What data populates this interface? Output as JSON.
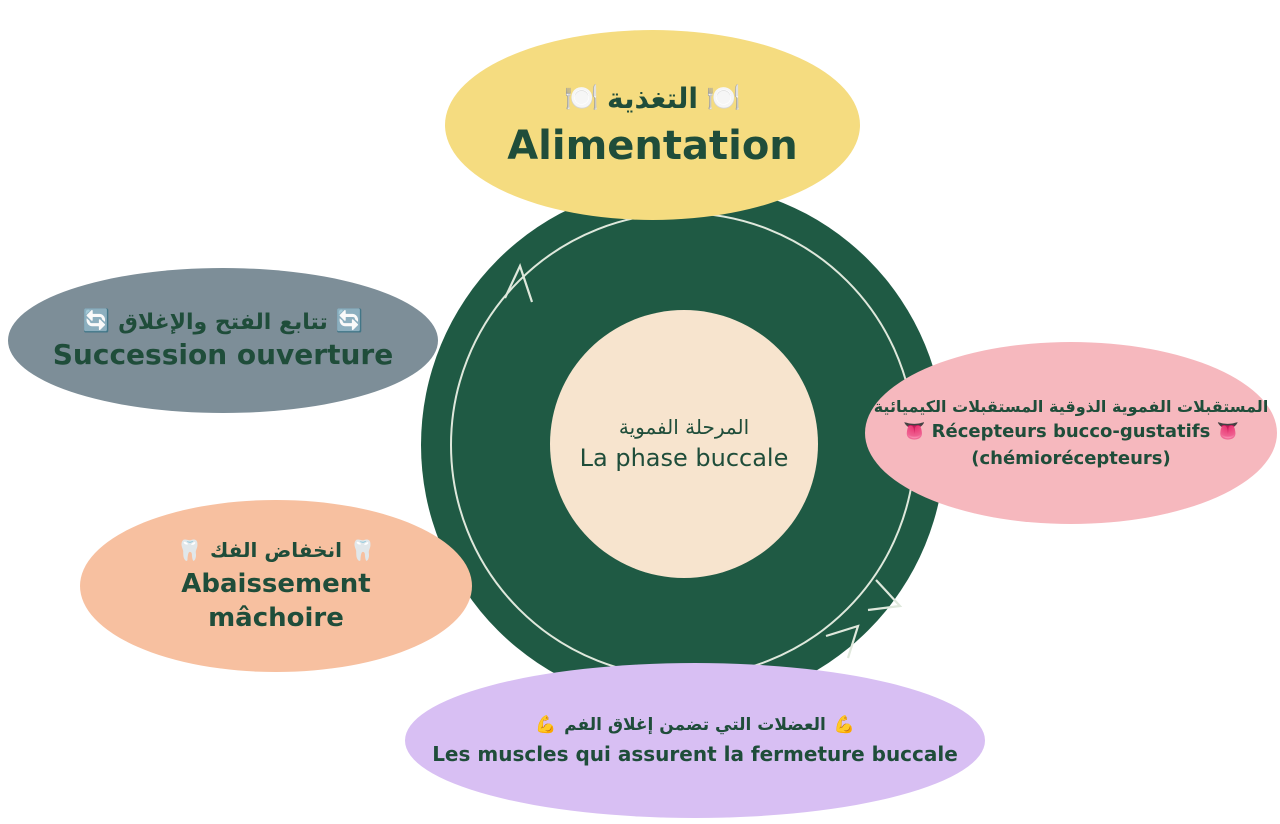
{
  "diagram": {
    "center": {
      "arabic": "المرحلة الفموية",
      "french": "La phase buccale"
    },
    "nodes": {
      "alimentation": {
        "emoji": "🍽️",
        "arabic": "التغذية",
        "french": "Alimentation"
      },
      "succession": {
        "emoji": "🔄",
        "arabic": "تتابع الفتح والإغلاق",
        "french": "Succession ouverture"
      },
      "recepteurs": {
        "emoji": "👅",
        "arabic": "المستقبلات الفموية الذوقية المستقبلات الكيميائية",
        "french_line1": "Récepteurs bucco-gustatifs",
        "french_line2": "(chémiorécepteurs)"
      },
      "abaissement": {
        "emoji": "🦷",
        "arabic": "انخفاض الفك",
        "french_line1": "Abaissement",
        "french_line2": "mâchoire"
      },
      "muscles": {
        "emoji": "💪",
        "arabic": "العضلات التي تضمن إغلاق الفم",
        "french": "Les muscles qui assurent la fermeture buccale"
      }
    },
    "colors": {
      "ring": "#1f5a44",
      "arrow": "#dfe8dc",
      "alimentation": "#f5dc80",
      "succession": "#7d8e98",
      "recepteurs": "#f6b8be",
      "abaissement": "#f7c0a0",
      "muscles": "#d8bff3",
      "center": "#f7e4ce",
      "text": "#1f4d3a"
    }
  }
}
